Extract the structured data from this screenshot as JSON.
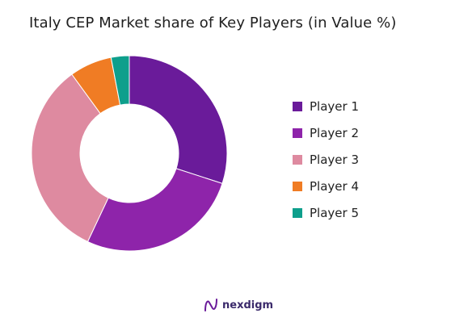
{
  "chart_data": {
    "type": "pie",
    "variant": "donut",
    "title": "Italy CEP Market share of Key Players (in Value %)",
    "categories": [
      "Player 1",
      "Player 2",
      "Player 3",
      "Player 4",
      "Player 5"
    ],
    "values": [
      30,
      27,
      33,
      7,
      3
    ],
    "unit": "%",
    "colors": [
      "#6a1b9a",
      "#8e24aa",
      "#de8aa0",
      "#f07c24",
      "#0e9f8c"
    ],
    "legend_position": "right"
  },
  "brand": {
    "name": "nexdigm",
    "logo_icon": "nexdigm-logo-icon"
  }
}
